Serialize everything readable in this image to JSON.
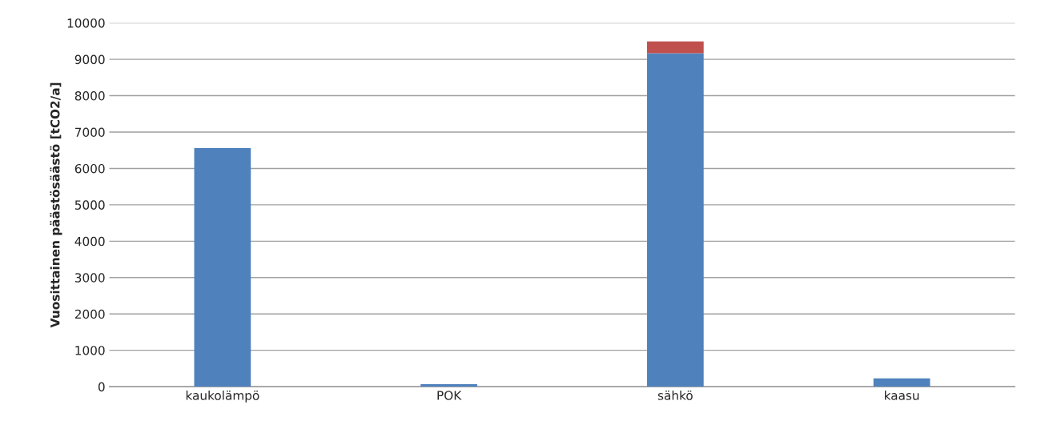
{
  "chart_data": {
    "type": "bar",
    "stacked": true,
    "ylabel": "Vuosittainen päästösäästö [tCO2/a]",
    "categories": [
      "kaukolämpö",
      "POK",
      "sähkö",
      "kaasu"
    ],
    "series": [
      {
        "color": "#4f81bd",
        "values": [
          6560,
          70,
          9170,
          230
        ]
      },
      {
        "color": "#c0504d",
        "values": [
          null,
          null,
          320,
          null
        ]
      }
    ],
    "ylim": [
      0,
      10000
    ],
    "yticks": [
      0,
      1000,
      2000,
      3000,
      4000,
      5000,
      6000,
      7000,
      8000,
      9000,
      10000
    ],
    "grid": "y"
  }
}
